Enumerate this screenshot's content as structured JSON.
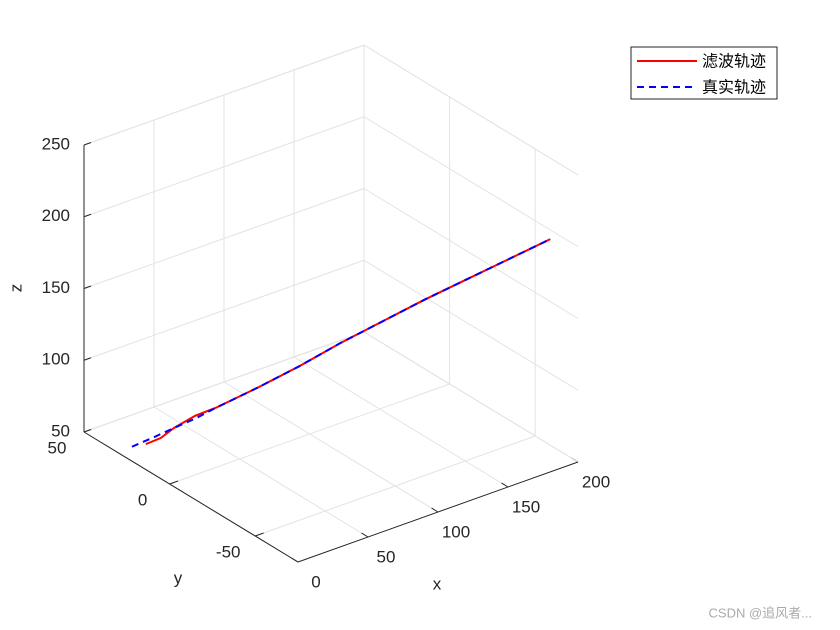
{
  "chart_data": {
    "type": "line3d",
    "xlabel": "x",
    "ylabel": "y",
    "zlabel": "z",
    "xlim": [
      0,
      200
    ],
    "ylim": [
      -75,
      50
    ],
    "zlim": [
      50,
      250
    ],
    "xticks": [
      0,
      50,
      100,
      150,
      200
    ],
    "yticks": [
      -50,
      0,
      50
    ],
    "zticks": [
      50,
      100,
      150,
      200,
      250
    ],
    "grid": true,
    "legend_position": "northeast",
    "series": [
      {
        "name": "滤波轨迹",
        "color": "#ff0000",
        "dash": "solid",
        "x": [
          5,
          12,
          19,
          28,
          38,
          57,
          76,
          95,
          114,
          133,
          152,
          171,
          190
        ],
        "y": [
          18,
          15,
          13,
          8,
          4,
          -5,
          -14,
          -22,
          -31,
          -40,
          -49,
          -58,
          -67
        ],
        "z": [
          63,
          67,
          73,
          82,
          87,
          101,
          116,
          131,
          146,
          161,
          175,
          189,
          203
        ]
      },
      {
        "name": "真实轨迹",
        "color": "#0000ff",
        "dash": "dashed",
        "x": [
          0,
          10,
          19,
          28,
          38,
          57,
          76,
          95,
          114,
          133,
          152,
          171,
          190
        ],
        "y": [
          22,
          17,
          13,
          8,
          4,
          -5,
          -14,
          -22,
          -31,
          -40,
          -49,
          -58,
          -67
        ],
        "z": [
          60,
          67,
          73,
          80,
          87,
          101,
          116,
          131,
          146,
          161,
          175,
          189,
          203
        ]
      }
    ],
    "watermark": "CSDN @追风者..."
  }
}
